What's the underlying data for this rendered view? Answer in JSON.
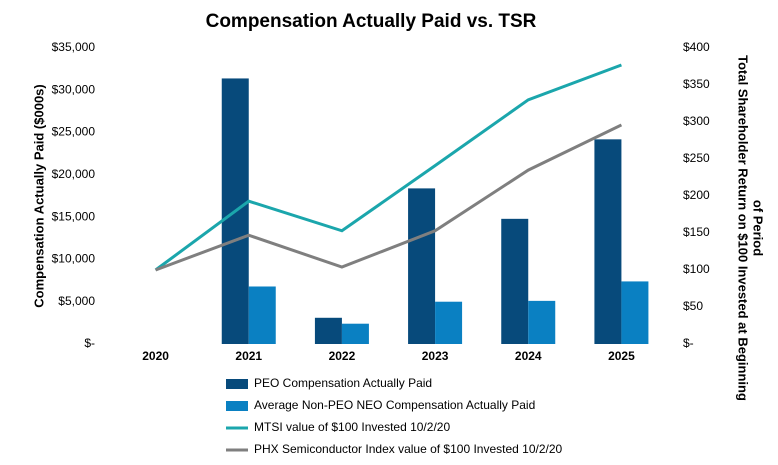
{
  "chart_data": {
    "type": "bar-line",
    "title": "Compensation Actually Paid vs. TSR",
    "y_label": "Compensation Actually Paid ($000s)",
    "y2_label": [
      "Total Shareholder Return on $100 Invested at Beginning",
      "of Period"
    ],
    "categories": [
      "2020",
      "2021",
      "2022",
      "2023",
      "2024",
      "2025"
    ],
    "series": [
      {
        "name": "PEO Compensation Actually Paid",
        "type": "bar",
        "color": "#074a7b",
        "values": [
          null,
          31400,
          3100,
          18400,
          14800,
          24200
        ]
      },
      {
        "name": "Average Non-PEO NEO Compensation Actually Paid",
        "type": "bar",
        "color": "#0a80c2",
        "values": [
          null,
          6800,
          2400,
          5000,
          5100,
          7400
        ]
      },
      {
        "name": "MTSI value of $100 Invested 10/2/20",
        "type": "line",
        "axis": "y2",
        "color": "#1ba6ac",
        "values": [
          100,
          193,
          153,
          241,
          330,
          377
        ]
      },
      {
        "name": "PHX Semiconductor Index value of $100 Invested 10/2/20",
        "type": "line",
        "axis": "y2",
        "color": "#7f7f7f",
        "values": [
          100,
          147,
          104,
          153,
          235,
          296
        ]
      }
    ],
    "ylim": [
      0,
      35000
    ],
    "yticks": [
      {
        "value": 0,
        "label": "$-"
      },
      {
        "value": 5000,
        "label": "$5,000"
      },
      {
        "value": 10000,
        "label": "$10,000"
      },
      {
        "value": 15000,
        "label": "$15,000"
      },
      {
        "value": 20000,
        "label": "$20,000"
      },
      {
        "value": 25000,
        "label": "$25,000"
      },
      {
        "value": 30000,
        "label": "$30,000"
      },
      {
        "value": 35000,
        "label": "$35,000"
      }
    ],
    "y2lim": [
      0,
      400
    ],
    "y2ticks": [
      {
        "value": 0,
        "label": "$-"
      },
      {
        "value": 50,
        "label": "$50"
      },
      {
        "value": 100,
        "label": "$100"
      },
      {
        "value": 150,
        "label": "$150"
      },
      {
        "value": 200,
        "label": "$200"
      },
      {
        "value": 250,
        "label": "$250"
      },
      {
        "value": 300,
        "label": "$300"
      },
      {
        "value": 350,
        "label": "$350"
      },
      {
        "value": 400,
        "label": "$400"
      }
    ],
    "grid": false
  }
}
